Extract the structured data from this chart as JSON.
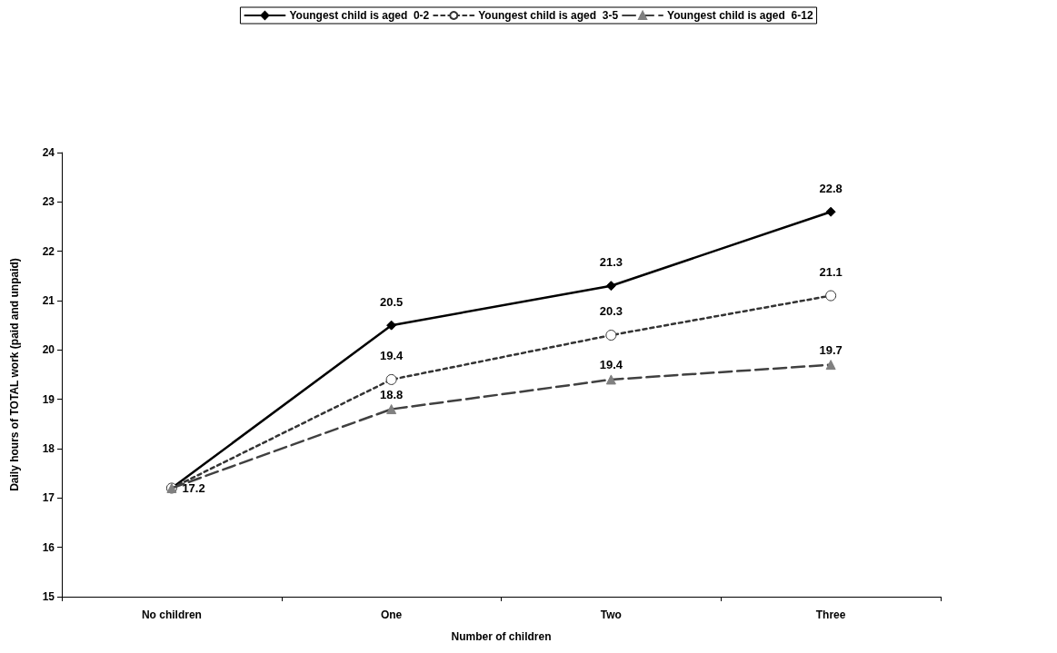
{
  "chart_data": {
    "type": "line",
    "xlabel": "Number of children",
    "ylabel": "Daily hours of TOTAL work (paid and unpaid)",
    "categories": [
      "No children",
      "One",
      "Two",
      "Three"
    ],
    "series": [
      {
        "name": "Youngest child is aged  0-2",
        "color": "#000000",
        "marker": "diamond",
        "line_style": "solid",
        "values": [
          17.2,
          20.5,
          21.3,
          22.8
        ],
        "value_labels": [
          null,
          "20.5",
          "21.3",
          "22.8"
        ]
      },
      {
        "name": "Youngest child is aged  3-5",
        "color": "#333333",
        "marker": "circle",
        "line_style": "dotted",
        "values": [
          17.2,
          19.4,
          20.3,
          21.1
        ],
        "value_labels": [
          null,
          "19.4",
          "20.3",
          "21.1"
        ]
      },
      {
        "name": "Youngest child is aged  6-12",
        "color": "#404040",
        "marker": "triangle",
        "line_style": "dashed",
        "values": [
          17.2,
          18.8,
          19.4,
          19.7
        ],
        "value_labels": [
          "17.2",
          "18.8",
          "19.4",
          "19.7"
        ]
      }
    ],
    "ylim": [
      15,
      24
    ],
    "yticks": [
      15,
      16,
      17,
      18,
      19,
      20,
      21,
      22,
      23,
      24
    ],
    "grid": false,
    "legend": "top"
  }
}
